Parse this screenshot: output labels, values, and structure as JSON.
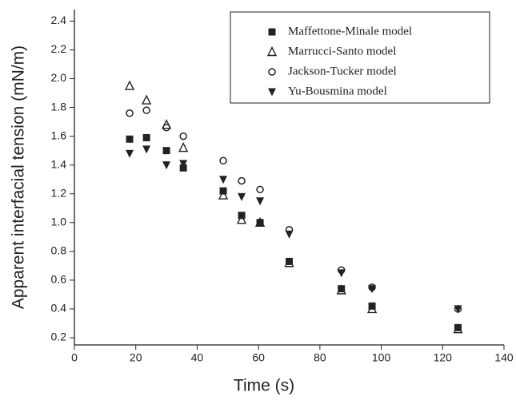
{
  "chart_data": {
    "type": "scatter",
    "x_label": "Time (s)",
    "y_label": "Apparent interfacial tension (mN/m)",
    "x": [
      18,
      23.5,
      30,
      35.5,
      48.5,
      54.5,
      60.5,
      70,
      87,
      97,
      125
    ],
    "series": [
      {
        "name": "Maffettone-Minale model",
        "color": "#222222",
        "marker": "square",
        "values": [
          1.58,
          1.59,
          1.5,
          1.38,
          1.22,
          1.05,
          1.0,
          0.73,
          0.54,
          0.42,
          0.27
        ]
      },
      {
        "name": "Marrucci-Santo model",
        "color": "#222222",
        "marker": "triangle-open",
        "values": [
          1.95,
          1.85,
          1.68,
          1.52,
          1.19,
          1.02,
          1.0,
          0.72,
          0.53,
          0.4,
          0.26
        ]
      },
      {
        "name": "Jackson-Tucker model",
        "color": "#222222",
        "marker": "circle-open",
        "values": [
          1.76,
          1.78,
          1.66,
          1.6,
          1.43,
          1.29,
          1.23,
          0.95,
          0.67,
          0.55,
          0.4
        ]
      },
      {
        "name": "Yu-Bousmina model",
        "color": "#222222",
        "marker": "triangle-down",
        "values": [
          1.48,
          1.51,
          1.4,
          1.41,
          1.3,
          1.18,
          1.15,
          0.92,
          0.65,
          0.54,
          0.4
        ]
      }
    ],
    "xlim": [
      0,
      140
    ],
    "xticks": [
      0,
      20,
      40,
      60,
      80,
      100,
      120,
      140
    ],
    "ylim": [
      0.15,
      2.48
    ],
    "yticks": [
      0.2,
      0.4,
      0.6,
      0.8,
      {
        "value": 1.0,
        "label": "1.0"
      },
      1.2,
      1.4,
      1.6,
      1.8,
      {
        "value": 2.0,
        "label": "2.0"
      },
      2.2,
      2.4
    ],
    "legend": "upper-right"
  }
}
